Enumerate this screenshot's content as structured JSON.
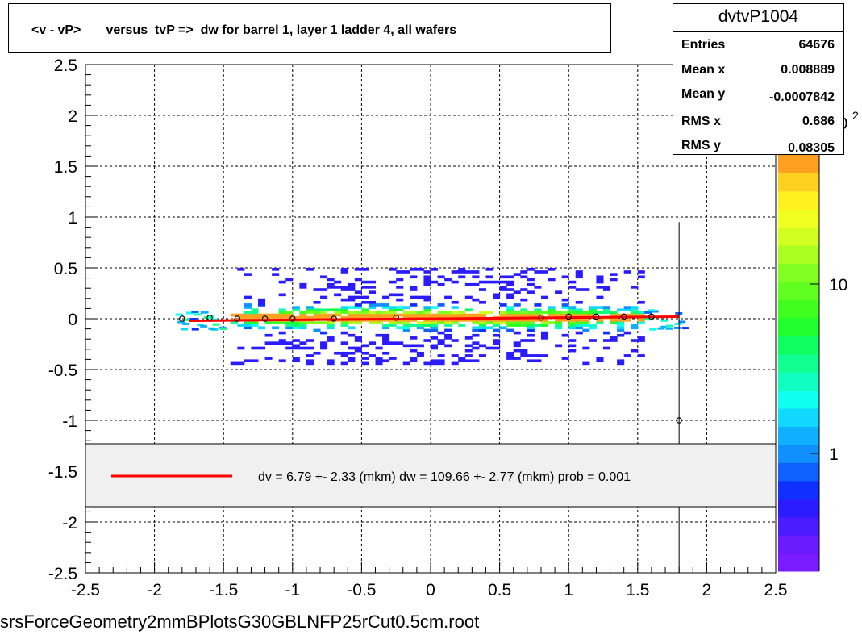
{
  "title": "<v - vP>       versus  tvP =>  dw for barrel 1, layer 1 ladder 4, all wafers",
  "stats": {
    "name": "dvtvP1004",
    "rows": [
      {
        "label": "Entries",
        "value": "64676"
      },
      {
        "label": "Mean x",
        "value": "0.008889"
      },
      {
        "label": "Mean y",
        "value": "-0.0007842"
      },
      {
        "label": "RMS x",
        "value": "0.686"
      },
      {
        "label": "RMS y",
        "value": "0.08305"
      }
    ]
  },
  "legend": {
    "text": "dv =    6.79 +-  2.33 (mkm) dw =  109.66 +-  2.77 (mkm) prob = 0.001",
    "line_color": "#ff0000"
  },
  "footer": "srsForceGeometry2mmBPlotsG30GBLNFP25rCut0.5cm.root",
  "chart_data": {
    "type": "heatmap",
    "xlim": [
      -2.5,
      2.5
    ],
    "ylim": [
      -2.5,
      2.5
    ],
    "x_ticks": [
      "-2.5",
      "-2",
      "-1.5",
      "-1",
      "-0.5",
      "0",
      "0.5",
      "1",
      "1.5",
      "2",
      "2.5"
    ],
    "y_ticks": [
      "2.5",
      "2",
      "1.5",
      "1",
      "0.5",
      "0",
      "-0.5",
      "-1",
      "-1.5",
      "-2",
      "-2.5"
    ],
    "grid": true,
    "z_scale": "log",
    "z_ticks": [
      "1",
      "10",
      "10^2"
    ],
    "palette": [
      "#7a1cff",
      "#6a1cff",
      "#4a1cff",
      "#2a1cff",
      "#1030ff",
      "#1060ff",
      "#1090ff",
      "#10b0ff",
      "#10d8ff",
      "#10fff0",
      "#10ffc0",
      "#10ff90",
      "#10ff60",
      "#20ff30",
      "#40ff20",
      "#60ff20",
      "#80ff20",
      "#a8ff20",
      "#d0ff20",
      "#f0ff20",
      "#fff020",
      "#ffd020",
      "#ffa020"
    ],
    "profile_points": [
      {
        "x": -1.8,
        "y": 0.0
      },
      {
        "x": -1.6,
        "y": 0.01
      },
      {
        "x": -1.4,
        "y": 0.0
      },
      {
        "x": -1.2,
        "y": 0.0
      },
      {
        "x": -1.0,
        "y": 0.0
      },
      {
        "x": -0.7,
        "y": 0.0
      },
      {
        "x": -0.25,
        "y": 0.01
      },
      {
        "x": 0.8,
        "y": 0.01
      },
      {
        "x": 1.0,
        "y": 0.02
      },
      {
        "x": 1.2,
        "y": 0.02
      },
      {
        "x": 1.4,
        "y": 0.02
      },
      {
        "x": 1.6,
        "y": 0.02
      },
      {
        "x": 1.8,
        "y": -1.0
      }
    ],
    "fit_line": {
      "x": [
        -1.75,
        1.8
      ],
      "y": [
        -0.02,
        0.02
      ]
    }
  }
}
